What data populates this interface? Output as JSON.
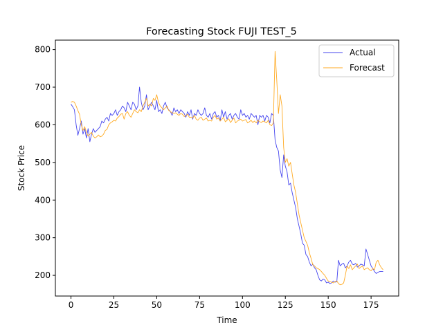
{
  "chart_data": {
    "type": "line",
    "title": "Forecasting Stock FUJI TEST_5",
    "xlabel": "Time",
    "ylabel": "Stock Price",
    "xlim": [
      -9.1,
      191.1
    ],
    "ylim": [
      145,
      825
    ],
    "xticks": [
      0,
      25,
      50,
      75,
      100,
      125,
      150,
      175
    ],
    "yticks": [
      200,
      300,
      400,
      500,
      600,
      700,
      800
    ],
    "grid": false,
    "legend": "top-right",
    "series": [
      {
        "name": "Actual",
        "color": "#4444ee",
        "x": [
          0,
          1,
          2,
          3,
          4,
          5,
          6,
          7,
          8,
          9,
          10,
          11,
          12,
          13,
          14,
          15,
          16,
          17,
          18,
          19,
          20,
          21,
          22,
          23,
          24,
          25,
          26,
          27,
          28,
          29,
          30,
          31,
          32,
          33,
          34,
          35,
          36,
          37,
          38,
          39,
          40,
          41,
          42,
          43,
          44,
          45,
          46,
          47,
          48,
          49,
          50,
          51,
          52,
          53,
          54,
          55,
          56,
          57,
          58,
          59,
          60,
          61,
          62,
          63,
          64,
          65,
          66,
          67,
          68,
          69,
          70,
          71,
          72,
          73,
          74,
          75,
          76,
          77,
          78,
          79,
          80,
          81,
          82,
          83,
          84,
          85,
          86,
          87,
          88,
          89,
          90,
          91,
          92,
          93,
          94,
          95,
          96,
          97,
          98,
          99,
          100,
          101,
          102,
          103,
          104,
          105,
          106,
          107,
          108,
          109,
          110,
          111,
          112,
          113,
          114,
          115,
          116,
          117,
          118,
          119,
          120,
          121,
          122,
          123,
          124,
          125,
          126,
          127,
          128,
          129,
          130,
          131,
          132,
          133,
          134,
          135,
          136,
          137,
          138,
          139,
          140,
          141,
          142,
          143,
          144,
          145,
          146,
          147,
          148,
          149,
          150,
          151,
          152,
          153,
          154,
          155,
          156,
          157,
          158,
          159,
          160,
          161,
          162,
          163,
          164,
          165,
          166,
          167,
          168,
          169,
          170,
          171,
          172,
          173,
          174,
          175,
          176,
          177,
          178,
          179,
          180,
          181,
          182
        ],
        "y": [
          655,
          648,
          640,
          600,
          572,
          590,
          610,
          575,
          590,
          565,
          590,
          555,
          575,
          590,
          580,
          585,
          590,
          595,
          610,
          605,
          615,
          620,
          610,
          630,
          625,
          630,
          640,
          625,
          635,
          640,
          650,
          645,
          635,
          660,
          650,
          640,
          660,
          655,
          640,
          650,
          700,
          660,
          640,
          650,
          680,
          640,
          650,
          660,
          650,
          640,
          665,
          635,
          640,
          630,
          650,
          660,
          645,
          640,
          635,
          625,
          645,
          635,
          640,
          630,
          640,
          635,
          630,
          620,
          635,
          625,
          640,
          615,
          630,
          625,
          640,
          630,
          625,
          630,
          645,
          625,
          620,
          630,
          615,
          630,
          635,
          620,
          625,
          610,
          640,
          620,
          635,
          615,
          625,
          630,
          615,
          625,
          630,
          620,
          615,
          640,
          625,
          630,
          620,
          625,
          615,
          630,
          625,
          620,
          625,
          600,
          625,
          620,
          625,
          610,
          625,
          620,
          605,
          630,
          625,
          560,
          540,
          530,
          480,
          460,
          520,
          490,
          475,
          440,
          445,
          420,
          400,
          380,
          350,
          330,
          310,
          285,
          280,
          255,
          250,
          235,
          225,
          230,
          220,
          215,
          200,
          188,
          185,
          190,
          188,
          180,
          182,
          178,
          180,
          185,
          182,
          183,
          240,
          225,
          230,
          232,
          220,
          225,
          235,
          240,
          230,
          228,
          232,
          222,
          225,
          230,
          228,
          225,
          270,
          255,
          240,
          225,
          218,
          210,
          205,
          208,
          210,
          210,
          210
        ]
      },
      {
        "name": "Forecast",
        "color": "#ffaa22",
        "x": [
          0,
          1,
          2,
          3,
          4,
          5,
          6,
          7,
          8,
          9,
          10,
          11,
          12,
          13,
          14,
          15,
          16,
          17,
          18,
          19,
          20,
          21,
          22,
          23,
          24,
          25,
          26,
          27,
          28,
          29,
          30,
          31,
          32,
          33,
          34,
          35,
          36,
          37,
          38,
          39,
          40,
          41,
          42,
          43,
          44,
          45,
          46,
          47,
          48,
          49,
          50,
          51,
          52,
          53,
          54,
          55,
          56,
          57,
          58,
          59,
          60,
          61,
          62,
          63,
          64,
          65,
          66,
          67,
          68,
          69,
          70,
          71,
          72,
          73,
          74,
          75,
          76,
          77,
          78,
          79,
          80,
          81,
          82,
          83,
          84,
          85,
          86,
          87,
          88,
          89,
          90,
          91,
          92,
          93,
          94,
          95,
          96,
          97,
          98,
          99,
          100,
          101,
          102,
          103,
          104,
          105,
          106,
          107,
          108,
          109,
          110,
          111,
          112,
          113,
          114,
          115,
          116,
          117,
          118,
          119,
          120,
          121,
          122,
          123,
          124,
          125,
          126,
          127,
          128,
          129,
          130,
          131,
          132,
          133,
          134,
          135,
          136,
          137,
          138,
          139,
          140,
          141,
          142,
          143,
          144,
          145,
          146,
          147,
          148,
          149,
          150,
          151,
          152,
          153,
          154,
          155,
          156,
          157,
          158,
          159,
          160,
          161,
          162,
          163,
          164,
          165,
          166,
          167,
          168,
          169,
          170,
          171,
          172,
          173,
          174,
          175,
          176,
          177,
          178,
          179,
          180,
          181,
          182
        ],
        "y": [
          660,
          662,
          660,
          650,
          638,
          628,
          600,
          585,
          595,
          580,
          570,
          575,
          580,
          570,
          565,
          568,
          573,
          568,
          570,
          575,
          585,
          588,
          600,
          605,
          608,
          612,
          610,
          618,
          622,
          628,
          630,
          615,
          630,
          635,
          625,
          620,
          630,
          640,
          635,
          632,
          640,
          635,
          650,
          660,
          670,
          650,
          655,
          650,
          670,
          665,
          680,
          660,
          650,
          645,
          640,
          645,
          650,
          638,
          635,
          632,
          630,
          632,
          628,
          625,
          630,
          628,
          622,
          625,
          628,
          620,
          620,
          618,
          625,
          615,
          612,
          618,
          620,
          612,
          615,
          618,
          610,
          612,
          610,
          620,
          625,
          615,
          618,
          610,
          615,
          620,
          608,
          612,
          616,
          606,
          612,
          618,
          605,
          610,
          612,
          615,
          610,
          612,
          614,
          605,
          608,
          612,
          606,
          610,
          605,
          612,
          608,
          606,
          610,
          608,
          605,
          612,
          600,
          598,
          605,
          795,
          720,
          630,
          680,
          650,
          540,
          500,
          510,
          490,
          500,
          470,
          440,
          420,
          390,
          360,
          340,
          320,
          300,
          290,
          280,
          260,
          245,
          228,
          225,
          220,
          218,
          215,
          210,
          205,
          200,
          192,
          185,
          183,
          182,
          180,
          183,
          185,
          178,
          175,
          176,
          180,
          200,
          225,
          218,
          228,
          215,
          220,
          225,
          230,
          218,
          222,
          225,
          215,
          218,
          220,
          215,
          212,
          218,
          215,
          235,
          240,
          228,
          220,
          215
        ]
      }
    ]
  }
}
